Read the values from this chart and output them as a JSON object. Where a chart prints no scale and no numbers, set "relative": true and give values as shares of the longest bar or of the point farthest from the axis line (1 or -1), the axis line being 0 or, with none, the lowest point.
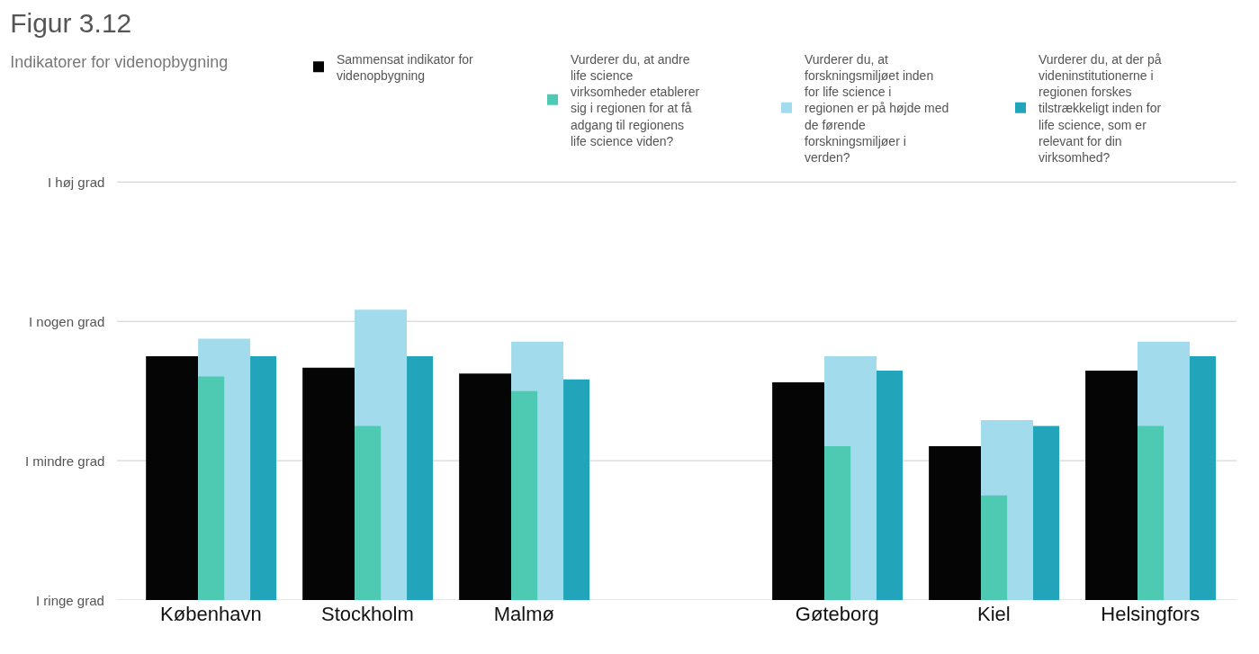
{
  "chart_data": {
    "type": "bar",
    "title": "Figur 3.12",
    "subtitle": "Indikatorer for videnopbygning",
    "categories": [
      "København",
      "Stockholm",
      "Malmø",
      null,
      "Gøteborg",
      "Kiel",
      "Helsingfors"
    ],
    "relative": true,
    "series": [
      {
        "name": "Sammensat indikator for videnopbygning",
        "color": "#050505",
        "values": [
          0.84,
          0.8,
          0.78,
          null,
          0.75,
          0.53,
          0.79
        ]
      },
      {
        "name": "Vurderer du, at andre life science virksomheder etablerer sig i regionen for at få adgang til regionens life science viden?",
        "color": "#4ecab2",
        "values": [
          0.77,
          0.6,
          0.72,
          null,
          0.53,
          0.36,
          0.6
        ]
      },
      {
        "name": "Vurderer du, at forskningsmiljøet inden for life science i regionen er på højde med de førende forskningsmiljøer i verden?",
        "color": "#a2dbeb",
        "values": [
          0.9,
          1,
          0.89,
          null,
          0.84,
          0.62,
          0.89
        ]
      },
      {
        "name": "Vurderer du, at der på videninstitutionerne i regionen forskes tilstrækkeligt inden for life science, som er relevant for din virksomhed?",
        "color": "#22a4ba",
        "values": [
          0.84,
          0.84,
          0.76,
          null,
          0.79,
          0.6,
          0.84
        ]
      }
    ],
    "ref_lines": [
      {
        "axis": "y",
        "value": 0,
        "label": "I ringe grad",
        "color": "#cccccc"
      },
      {
        "axis": "y",
        "value": 0.48,
        "label": "I mindre grad",
        "color": "#cccccc"
      },
      {
        "axis": "y",
        "value": 0.96,
        "label": "I nogen grad",
        "color": "#cccccc"
      },
      {
        "axis": "y",
        "value": 1.44,
        "label": "I høj grad",
        "color": "#cccccc"
      }
    ],
    "legend": "top right"
  }
}
